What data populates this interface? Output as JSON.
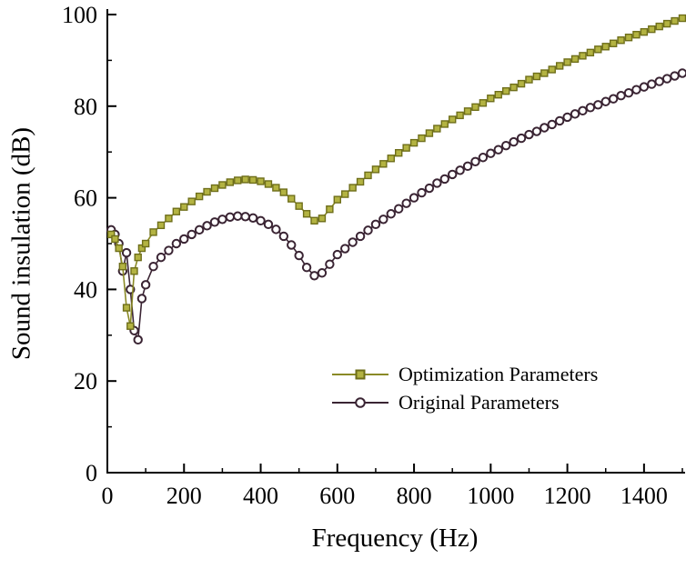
{
  "figure": {
    "xlabel": "Frequency (Hz)",
    "ylabel": "Sound insulation (dB)"
  },
  "legend": {
    "entries": [
      {
        "label": "Optimization Parameters",
        "marker": "square"
      },
      {
        "label": "Original Parameters",
        "marker": "circle"
      }
    ]
  },
  "chart_data": {
    "type": "line",
    "title": "",
    "xlabel": "Frequency (Hz)",
    "ylabel": "Sound insulation (dB)",
    "xlim": [
      0,
      1500
    ],
    "ylim": [
      0,
      100
    ],
    "xticks": [
      0,
      200,
      400,
      600,
      800,
      1000,
      1200,
      1400
    ],
    "xminor_step": 100,
    "yticks": [
      0,
      20,
      40,
      60,
      80,
      100
    ],
    "yminor_step": 10,
    "grid": false,
    "legend_position": "inside-lower-right",
    "x": [
      10,
      20,
      30,
      40,
      50,
      60,
      70,
      80,
      90,
      100,
      120,
      140,
      160,
      180,
      200,
      220,
      240,
      260,
      280,
      300,
      320,
      340,
      360,
      380,
      400,
      420,
      440,
      460,
      480,
      500,
      520,
      540,
      560,
      580,
      600,
      620,
      640,
      660,
      680,
      700,
      720,
      740,
      760,
      780,
      800,
      820,
      840,
      860,
      880,
      900,
      920,
      940,
      960,
      980,
      1000,
      1020,
      1040,
      1060,
      1080,
      1100,
      1120,
      1140,
      1160,
      1180,
      1200,
      1220,
      1240,
      1260,
      1280,
      1300,
      1320,
      1340,
      1360,
      1380,
      1400,
      1420,
      1440,
      1460,
      1480,
      1500
    ],
    "series": [
      {
        "name": "Optimization Parameters",
        "marker": "square",
        "line_color": "#8a8a26",
        "marker_fill": "#b3b342",
        "marker_edge": "#6e6e1a",
        "values": [
          52,
          51,
          49,
          45,
          36,
          32,
          44,
          47,
          49,
          50,
          52.5,
          54,
          55.5,
          57,
          58,
          59.2,
          60.3,
          61.3,
          62.1,
          62.8,
          63.4,
          63.8,
          64,
          63.9,
          63.6,
          63,
          62.2,
          61.2,
          59.8,
          58.2,
          56.5,
          55,
          55.5,
          57.5,
          59.6,
          60.8,
          62.2,
          63.5,
          64.9,
          66.2,
          67.4,
          68.6,
          69.8,
          70.9,
          72,
          73,
          74.1,
          75.1,
          76.1,
          77.1,
          78,
          78.9,
          79.8,
          80.7,
          81.7,
          82.5,
          83.3,
          84.1,
          84.9,
          85.8,
          86.5,
          87.2,
          88,
          88.8,
          89.6,
          90.3,
          91,
          91.7,
          92.4,
          93,
          93.7,
          94.4,
          95,
          95.6,
          96.2,
          96.8,
          97.4,
          98,
          98.6,
          99.2
        ]
      },
      {
        "name": "Original Parameters",
        "marker": "circle",
        "line_color": "#3a2433",
        "marker_fill": "#ffffff",
        "marker_edge": "#3a2433",
        "values": [
          53,
          52,
          50,
          44,
          48,
          40,
          31,
          29,
          38,
          41,
          45,
          47,
          48.5,
          50,
          51,
          52,
          53,
          53.9,
          54.7,
          55.3,
          55.8,
          56,
          55.9,
          55.6,
          55,
          54.2,
          53.1,
          51.6,
          49.7,
          47.4,
          44.8,
          43,
          43.6,
          45.5,
          47.6,
          48.9,
          50.3,
          51.6,
          52.9,
          54.2,
          55.3,
          56.5,
          57.6,
          58.8,
          60,
          61.1,
          62.1,
          63.2,
          64.1,
          65.1,
          66,
          66.9,
          67.9,
          68.8,
          69.7,
          70.5,
          71.4,
          72.2,
          73,
          73.8,
          74.5,
          75.3,
          76,
          76.8,
          77.6,
          78.3,
          79,
          79.7,
          80.3,
          81,
          81.6,
          82.3,
          82.9,
          83.6,
          84.2,
          84.8,
          85.4,
          86,
          86.6,
          87.2
        ]
      }
    ]
  }
}
